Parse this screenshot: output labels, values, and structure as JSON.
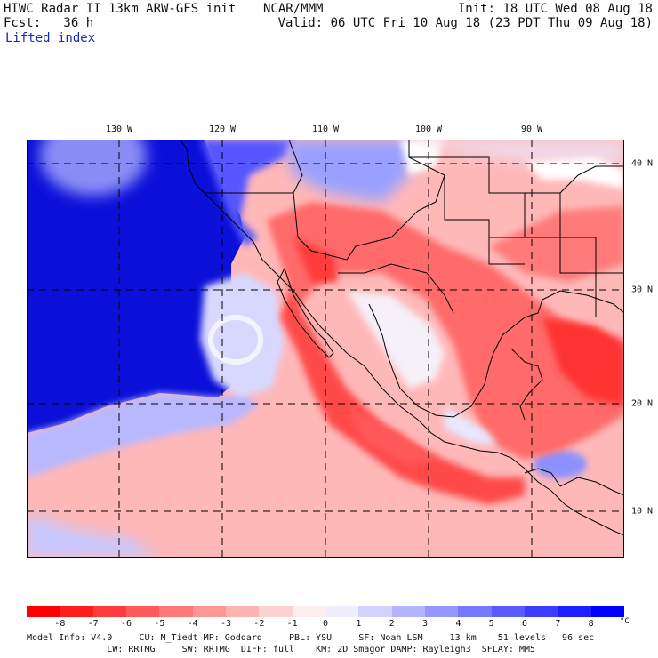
{
  "header": {
    "title_left": "HIWC Radar II 13km ARW-GFS init",
    "title_center": "NCAR/MMM",
    "init": "Init: 18 UTC Wed 08 Aug 18",
    "fcst": "Fcst:   36 h",
    "valid": "Valid: 06 UTC Fri 10 Aug 18 (23 PDT Thu 09 Aug 18)",
    "field": "Lifted index"
  },
  "map": {
    "longitude_labels": [
      "130 W",
      "120 W",
      "110 W",
      "100 W",
      "90 W"
    ],
    "latitude_labels": [
      "40 N",
      "30 N",
      "20 N",
      "10 N"
    ]
  },
  "colorbar": {
    "tick_labels": [
      "-8",
      "-7",
      "-6",
      "-5",
      "-4",
      "-3",
      "-2",
      "-1",
      "0",
      "1",
      "2",
      "3",
      "4",
      "5",
      "6",
      "7",
      "8"
    ],
    "unit": "°C",
    "colors": [
      "#ff0000",
      "#ff1e1e",
      "#ff3c3c",
      "#ff5a5a",
      "#ff7878",
      "#ff9696",
      "#ffb4b4",
      "#ffd2d2",
      "#ffeeee",
      "#eeeeff",
      "#d2d2ff",
      "#b4b4ff",
      "#9696ff",
      "#7878ff",
      "#5a5aff",
      "#3c3cff",
      "#1e1eff",
      "#0000ff"
    ]
  },
  "footer": {
    "line1": "Model Info: V4.0     CU: N_Tiedt MP: Goddard     PBL: YSU     SF: Noah LSM     13 km    51 levels   96 sec",
    "line2": "               LW: RRTMG     SW: RRTMG  DIFF: full    KM: 2D Smagor DAMP: Rayleigh3  SFLAY: MM5"
  }
}
